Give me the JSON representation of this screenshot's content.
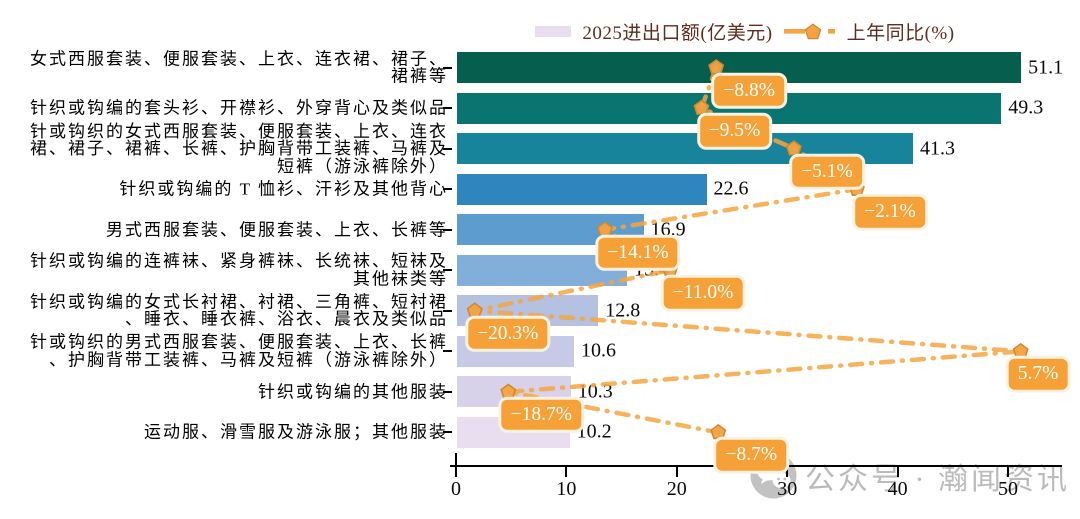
{
  "legend": {
    "bar_series_label": "2025进出口额(亿美元)",
    "line_series_label": "上年同比(%)"
  },
  "watermark": {
    "icon": "wechat-icon",
    "text": "公众号 · 瀚闻资讯"
  },
  "chart_data": {
    "type": "bar",
    "orientation": "horizontal",
    "title": "",
    "xlabel": "",
    "ylabel": "",
    "categories": [
      "女式西服套装、便服套装、上衣、连衣裙、裙子、\n裙裤等",
      "针织或钩编的套头衫、开襟衫、外穿背心及类似品",
      "针或钩织的女式西服套装、便服套装、上衣、连衣\n裙、裙子、裙裤、长裤、护胸背带工装裤、马裤及\n短裤（游泳裤除外）",
      "针织或钩编的 T 恤衫、汗衫及其他背心",
      "男式西服套装、便服套装、上衣、长裤等",
      "针织或钩编的连裤袜、紧身裤袜、长统袜、短袜及\n其他袜类等",
      "针织或钩编的女式长衬裙、衬裙、三角裤、短衬裙\n、睡衣、睡衣裤、浴衣、晨衣及类似品",
      "针或钩织的男式西服套装、便服套装、上衣、长裤\n、护胸背带工装裤、马裤及短裤（游泳裤除外）",
      "针织或钩编的其他服装",
      "运动服、滑雪服及游泳服；其他服装"
    ],
    "series": [
      {
        "name": "2025进出口额(亿美元)",
        "values": [
          51.1,
          49.3,
          41.3,
          22.6,
          16.9,
          15.4,
          12.8,
          10.6,
          10.3,
          10.2
        ],
        "value_labels": [
          "51.1",
          "49.3",
          "41.3",
          "22.6",
          "16.9",
          "15.4",
          "12.8",
          "10.6",
          "10.3",
          "10.2"
        ]
      },
      {
        "name": "上年同比(%)",
        "values": [
          -8.8,
          -9.5,
          -5.1,
          -2.1,
          -14.1,
          -11.0,
          -20.3,
          5.7,
          -18.7,
          -8.7
        ],
        "value_labels": [
          "−8.8%",
          "−9.5%",
          "−5.1%",
          "−2.1%",
          "−14.1%",
          "−11.0%",
          "−20.3%",
          "5.7%",
          "−18.7%",
          "−8.7%"
        ]
      }
    ],
    "xlim": [
      0,
      52.5
    ],
    "x_ticks": [
      "0",
      "10",
      "20",
      "30",
      "40",
      "50"
    ],
    "x_tick_values": [
      0,
      10,
      20,
      30,
      40,
      50
    ],
    "secondary_xlim": [
      -21.2,
      7.7
    ],
    "grid": false,
    "legend_position": "top",
    "bar_colors": [
      "#065f4e",
      "#0a7570",
      "#17849b",
      "#2f86be",
      "#5c9cce",
      "#81afd9",
      "#b4c1e1",
      "#c7cae6",
      "#d7d1e9",
      "#e9def0"
    ],
    "line_color": "#f6a440",
    "marker_fill": "#f2a243",
    "marker_edge": "#d1872c",
    "pct_label_bg": "#f5a138",
    "axis_color": "#000000"
  }
}
